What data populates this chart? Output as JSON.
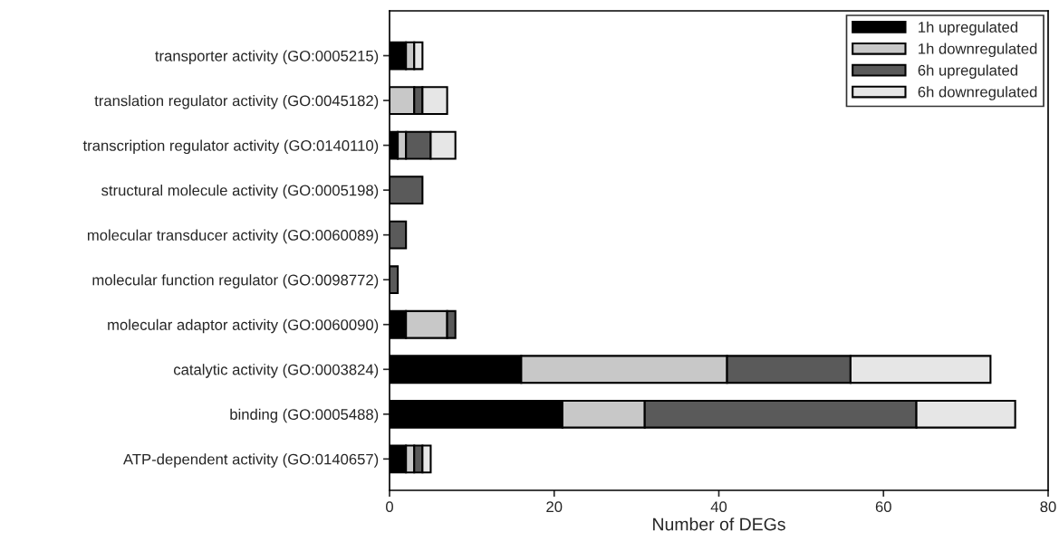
{
  "chart_data": {
    "type": "bar",
    "orientation": "horizontal",
    "stacked": true,
    "xlabel": "Number of DEGs",
    "categories": [
      "transporter activity (GO:0005215)",
      "translation regulator activity (GO:0045182)",
      "transcription regulator activity (GO:0140110)",
      "structural molecule activity (GO:0005198)",
      "molecular transducer activity (GO:0060089)",
      "molecular function regulator (GO:0098772)",
      "molecular adaptor activity (GO:0060090)",
      "catalytic activity (GO:0003824)",
      "binding (GO:0005488)",
      "ATP-dependent activity (GO:0140657)"
    ],
    "series": [
      {
        "name": "1h upregulated",
        "color": "#000000",
        "values": [
          2,
          0,
          1,
          0,
          0,
          0,
          2,
          16,
          21,
          2
        ]
      },
      {
        "name": "1h downregulated",
        "color": "#c8c8c8",
        "values": [
          1,
          3,
          1,
          0,
          0,
          0,
          5,
          25,
          10,
          1
        ]
      },
      {
        "name": "6h upregulated",
        "color": "#5a5a5a",
        "values": [
          0,
          1,
          3,
          4,
          2,
          1,
          1,
          15,
          33,
          1
        ]
      },
      {
        "name": "6h downregulated",
        "color": "#e6e6e6",
        "values": [
          1,
          3,
          3,
          0,
          0,
          0,
          0,
          17,
          12,
          1
        ]
      }
    ],
    "xlim": [
      0,
      80
    ],
    "xticks": [
      0,
      20,
      40,
      60,
      80
    ],
    "legend": "top right",
    "grid": false
  }
}
